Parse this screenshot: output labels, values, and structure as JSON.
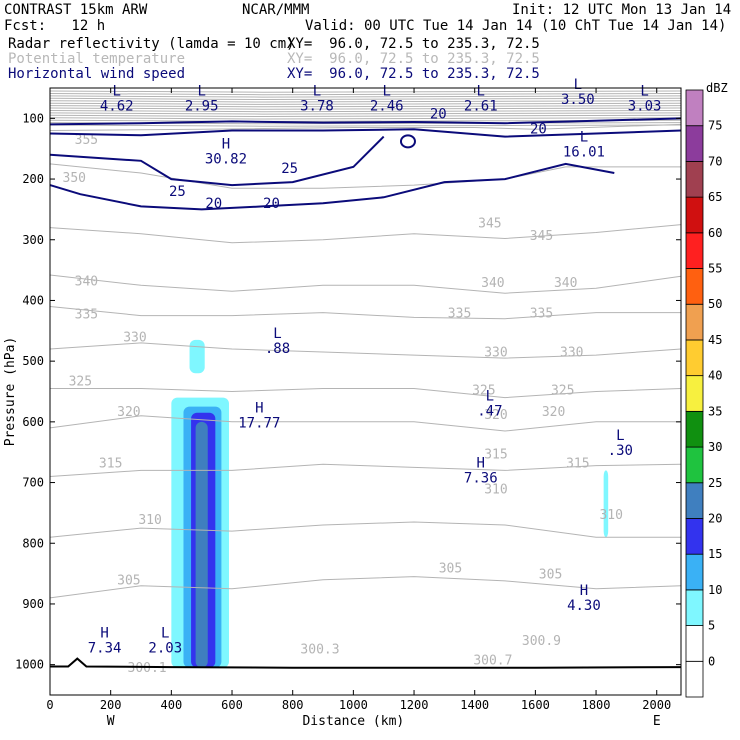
{
  "header": {
    "left1": "CONTRAST 15km ARW",
    "center1": "NCAR/MMM",
    "right1": "Init: 12 UTC Mon 13 Jan 14",
    "left2": "Fcst:   12 h",
    "right2": "Valid: 00 UTC Tue 14 Jan 14 (10 ChT Tue 14 Jan 14)",
    "field1_name": "Radar reflectivity (lamda = 10 cm)",
    "field1_xy": "XY=  96.0, 72.5 to 235.3, 72.5",
    "field2_name": "Potential temperature",
    "field2_xy": "XY=  96.0, 72.5 to 235.3, 72.5",
    "field3_name": "Horizontal wind speed",
    "field3_xy": "XY=  96.0, 72.5 to 235.3, 72.5"
  },
  "colors": {
    "theta": "#b4b4b4",
    "wind": "#0b0b7a",
    "axis": "#000000"
  },
  "chart_data": {
    "type": "cross-section",
    "xlabel": "Distance (km)",
    "ylabel": "Pressure (hPa)",
    "x_end_left": "W",
    "x_end_right": "E",
    "xlim": [
      0,
      2080
    ],
    "ylim": [
      1050,
      50
    ],
    "xticks": [
      0,
      200,
      400,
      600,
      800,
      1000,
      1200,
      1400,
      1600,
      1800,
      2000
    ],
    "yticks": [
      100,
      200,
      300,
      400,
      500,
      600,
      700,
      800,
      900,
      1000
    ],
    "colorbar": {
      "title": "dBZ",
      "levels": [
        "0",
        "5",
        "10",
        "15",
        "20",
        "25",
        "30",
        "35",
        "40",
        "45",
        "50",
        "55",
        "60",
        "65",
        "70",
        "75"
      ],
      "colors": [
        "#ffffff",
        "#7ff7ff",
        "#3ab1f5",
        "#3333ee",
        "#3f7fbf",
        "#1fc33f",
        "#109010",
        "#f7f03f",
        "#ffcc30",
        "#f0a050",
        "#ff6010",
        "#ff2020",
        "#d01010",
        "#a04050",
        "#8c3c9c",
        "#c080c0"
      ]
    },
    "theta_contours": [
      {
        "value": 355,
        "label": "355",
        "points": [
          [
            0,
            120
          ],
          [
            500,
            118
          ],
          [
            1000,
            115
          ],
          [
            1400,
            115
          ],
          [
            1600,
            118
          ],
          [
            2080,
            110
          ]
        ]
      },
      {
        "value": 350,
        "label": "350",
        "points": [
          [
            0,
            175
          ],
          [
            300,
            190
          ],
          [
            600,
            215
          ],
          [
            900,
            215
          ],
          [
            1200,
            210
          ],
          [
            1500,
            200
          ],
          [
            1700,
            180
          ],
          [
            2080,
            180
          ]
        ]
      },
      {
        "value": 345,
        "label": "345",
        "points": [
          [
            0,
            280
          ],
          [
            300,
            290
          ],
          [
            600,
            305
          ],
          [
            900,
            300
          ],
          [
            1200,
            290
          ],
          [
            1500,
            298
          ],
          [
            1800,
            288
          ],
          [
            2080,
            275
          ]
        ]
      },
      {
        "value": 340,
        "label": "340",
        "points": [
          [
            0,
            358
          ],
          [
            300,
            375
          ],
          [
            600,
            385
          ],
          [
            900,
            375
          ],
          [
            1200,
            375
          ],
          [
            1500,
            388
          ],
          [
            1800,
            380
          ],
          [
            2080,
            360
          ]
        ]
      },
      {
        "value": 335,
        "label": "335",
        "points": [
          [
            0,
            410
          ],
          [
            300,
            425
          ],
          [
            600,
            425
          ],
          [
            900,
            420
          ],
          [
            1200,
            428
          ],
          [
            1500,
            430
          ],
          [
            1800,
            420
          ],
          [
            2080,
            420
          ]
        ]
      },
      {
        "value": 330,
        "label": "330",
        "points": [
          [
            0,
            480
          ],
          [
            300,
            470
          ],
          [
            600,
            480
          ],
          [
            900,
            485
          ],
          [
            1200,
            490
          ],
          [
            1500,
            495
          ],
          [
            1800,
            490
          ],
          [
            2080,
            480
          ]
        ]
      },
      {
        "value": 325,
        "label": "325",
        "points": [
          [
            0,
            545
          ],
          [
            300,
            545
          ],
          [
            600,
            550
          ],
          [
            900,
            545
          ],
          [
            1200,
            545
          ],
          [
            1500,
            560
          ],
          [
            1800,
            550
          ],
          [
            2080,
            545
          ]
        ]
      },
      {
        "value": 320,
        "label": "320",
        "points": [
          [
            0,
            610
          ],
          [
            300,
            590
          ],
          [
            600,
            600
          ],
          [
            900,
            600
          ],
          [
            1200,
            600
          ],
          [
            1500,
            615
          ],
          [
            1800,
            600
          ],
          [
            2080,
            600
          ]
        ]
      },
      {
        "value": 315,
        "label": "315",
        "points": [
          [
            0,
            690
          ],
          [
            300,
            680
          ],
          [
            600,
            680
          ],
          [
            900,
            670
          ],
          [
            1200,
            675
          ],
          [
            1500,
            680
          ],
          [
            1800,
            672
          ],
          [
            2080,
            670
          ]
        ]
      },
      {
        "value": 310,
        "label": "310",
        "points": [
          [
            0,
            790
          ],
          [
            300,
            775
          ],
          [
            600,
            780
          ],
          [
            900,
            770
          ],
          [
            1200,
            765
          ],
          [
            1500,
            770
          ],
          [
            1800,
            790
          ],
          [
            2080,
            790
          ]
        ]
      },
      {
        "value": 305,
        "label": "305",
        "points": [
          [
            0,
            890
          ],
          [
            300,
            870
          ],
          [
            600,
            875
          ],
          [
            900,
            860
          ],
          [
            1200,
            855
          ],
          [
            1500,
            862
          ],
          [
            1800,
            875
          ],
          [
            2080,
            870
          ]
        ]
      }
    ],
    "theta_labels": [
      {
        "text": "355",
        "x": 120,
        "p": 142
      },
      {
        "text": "350",
        "x": 80,
        "p": 205
      },
      {
        "text": "345",
        "x": 1450,
        "p": 280
      },
      {
        "text": "345",
        "x": 1620,
        "p": 300
      },
      {
        "text": "340",
        "x": 120,
        "p": 375
      },
      {
        "text": "340",
        "x": 1460,
        "p": 378
      },
      {
        "text": "340",
        "x": 1700,
        "p": 378
      },
      {
        "text": "335",
        "x": 120,
        "p": 430
      },
      {
        "text": "335",
        "x": 1350,
        "p": 428
      },
      {
        "text": "335",
        "x": 1620,
        "p": 428
      },
      {
        "text": "330",
        "x": 280,
        "p": 468
      },
      {
        "text": "330",
        "x": 1470,
        "p": 492
      },
      {
        "text": "330",
        "x": 1720,
        "p": 492
      },
      {
        "text": "325",
        "x": 100,
        "p": 540
      },
      {
        "text": "325",
        "x": 1430,
        "p": 555
      },
      {
        "text": "325",
        "x": 1690,
        "p": 555
      },
      {
        "text": "320",
        "x": 260,
        "p": 590
      },
      {
        "text": "320",
        "x": 1470,
        "p": 595
      },
      {
        "text": "320",
        "x": 1660,
        "p": 590
      },
      {
        "text": "315",
        "x": 200,
        "p": 675
      },
      {
        "text": "315",
        "x": 1470,
        "p": 660
      },
      {
        "text": "315",
        "x": 1740,
        "p": 675
      },
      {
        "text": "310",
        "x": 330,
        "p": 768
      },
      {
        "text": "310",
        "x": 1470,
        "p": 718
      },
      {
        "text": "310",
        "x": 1850,
        "p": 760
      },
      {
        "text": "305",
        "x": 260,
        "p": 868
      },
      {
        "text": "305",
        "x": 1320,
        "p": 848
      },
      {
        "text": "305",
        "x": 1650,
        "p": 858
      },
      {
        "text": "300.1",
        "x": 320,
        "p": 1012
      },
      {
        "text": "300.3",
        "x": 890,
        "p": 982
      },
      {
        "text": "300.7",
        "x": 1460,
        "p": 1000
      },
      {
        "text": "300.9",
        "x": 1620,
        "p": 968
      }
    ],
    "wind_contours": [
      {
        "value": 20,
        "points": [
          [
            0,
            110
          ],
          [
            300,
            108
          ],
          [
            600,
            105
          ],
          [
            900,
            107
          ],
          [
            1200,
            106
          ],
          [
            1500,
            108
          ],
          [
            1800,
            104
          ],
          [
            2080,
            100
          ]
        ]
      },
      {
        "value": 25,
        "points": [
          [
            0,
            125
          ],
          [
            300,
            128
          ],
          [
            600,
            120
          ],
          [
            900,
            120
          ],
          [
            1200,
            118
          ],
          [
            1500,
            130
          ],
          [
            1800,
            125
          ],
          [
            2080,
            120
          ]
        ]
      },
      {
        "value": 25,
        "points": [
          [
            0,
            160
          ],
          [
            300,
            170
          ],
          [
            400,
            200
          ],
          [
            600,
            210
          ],
          [
            800,
            205
          ],
          [
            1000,
            180
          ],
          [
            1100,
            130
          ]
        ]
      },
      {
        "value": 20,
        "points": [
          [
            0,
            210
          ],
          [
            100,
            225
          ],
          [
            300,
            245
          ],
          [
            500,
            250
          ],
          [
            700,
            245
          ],
          [
            900,
            240
          ],
          [
            1100,
            230
          ],
          [
            1300,
            205
          ],
          [
            1500,
            200
          ],
          [
            1700,
            175
          ],
          [
            1860,
            190
          ]
        ]
      }
    ],
    "wind_labels": [
      {
        "text": "20",
        "x": 1280,
        "p": 100
      },
      {
        "text": "20",
        "x": 1610,
        "p": 125
      },
      {
        "text": "25",
        "x": 790,
        "p": 190
      },
      {
        "text": "25",
        "x": 420,
        "p": 228
      },
      {
        "text": "20",
        "x": 540,
        "p": 248
      },
      {
        "text": "20",
        "x": 730,
        "p": 248
      }
    ],
    "extrema": [
      {
        "kind": "L",
        "value": "4.62",
        "x": 220,
        "p": 62
      },
      {
        "kind": "L",
        "value": "2.95",
        "x": 500,
        "p": 62
      },
      {
        "kind": "L",
        "value": "3.78",
        "x": 880,
        "p": 62
      },
      {
        "kind": "L",
        "value": "2.46",
        "x": 1110,
        "p": 62
      },
      {
        "kind": "L",
        "value": "2.61",
        "x": 1420,
        "p": 62
      },
      {
        "kind": "L",
        "value": "3.50",
        "x": 1740,
        "p": 52
      },
      {
        "kind": "L",
        "value": "3.03",
        "x": 1960,
        "p": 62
      },
      {
        "kind": "H",
        "value": "30.82",
        "x": 580,
        "p": 150
      },
      {
        "kind": "L",
        "value": "16.01",
        "x": 1760,
        "p": 138
      },
      {
        "kind": "L",
        "value": ".88",
        "x": 750,
        "p": 462
      },
      {
        "kind": "L",
        "value": ".47",
        "x": 1450,
        "p": 565
      },
      {
        "kind": "H",
        "value": "17.77",
        "x": 690,
        "p": 585
      },
      {
        "kind": "L",
        "value": ".30",
        "x": 1880,
        "p": 630
      },
      {
        "kind": "H",
        "value": "7.36",
        "x": 1420,
        "p": 675
      },
      {
        "kind": "H",
        "value": "4.30",
        "x": 1760,
        "p": 885
      },
      {
        "kind": "H",
        "value": "7.34",
        "x": 180,
        "p": 955
      },
      {
        "kind": "L",
        "value": "2.03",
        "x": 380,
        "p": 955
      }
    ],
    "reflectivity": [
      {
        "dbz": 5,
        "x0": 400,
        "x1": 590,
        "p_top": 560,
        "p_bot": 1005
      },
      {
        "dbz": 5,
        "x0": 460,
        "x1": 510,
        "p_top": 465,
        "p_bot": 520
      },
      {
        "dbz": 5,
        "x0": 1825,
        "x1": 1840,
        "p_top": 680,
        "p_bot": 790
      },
      {
        "dbz": 10,
        "x0": 440,
        "x1": 565,
        "p_top": 575,
        "p_bot": 1005
      },
      {
        "dbz": 15,
        "x0": 465,
        "x1": 545,
        "p_top": 585,
        "p_bot": 1005
      },
      {
        "dbz": 20,
        "x0": 480,
        "x1": 520,
        "p_top": 600,
        "p_bot": 1005
      }
    ],
    "terrain": [
      [
        0,
        1003
      ],
      [
        60,
        1003
      ],
      [
        90,
        990
      ],
      [
        120,
        1003
      ],
      [
        400,
        1004
      ],
      [
        800,
        1005
      ],
      [
        1200,
        1005
      ],
      [
        1600,
        1005
      ],
      [
        2080,
        1004
      ]
    ]
  }
}
